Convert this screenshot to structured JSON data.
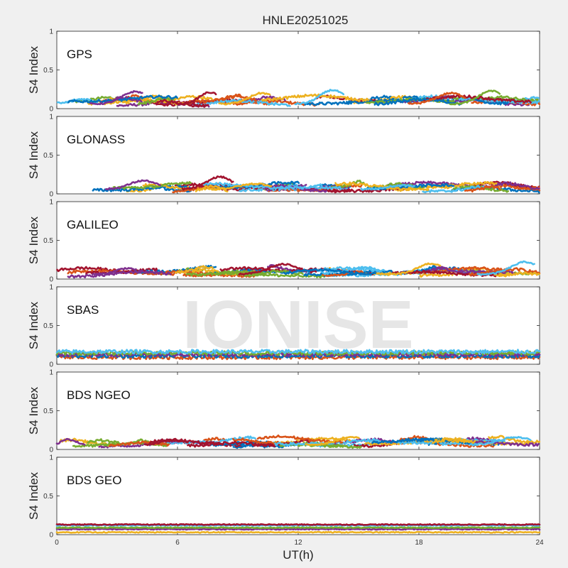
{
  "chart_data": {
    "type": "line",
    "title": "HNLE20251025",
    "xlabel": "UT(h)",
    "ylabel": "S4 Index",
    "xlim": [
      0,
      24
    ],
    "ylim": [
      0,
      1
    ],
    "xticks": [
      "0",
      "6",
      "12",
      "18",
      "24"
    ],
    "yticks": [
      "0",
      "0.5",
      "1"
    ],
    "watermark": "IONISE",
    "series_colors": [
      "#0072BD",
      "#D95319",
      "#EDB120",
      "#7E2F8E",
      "#77AC30",
      "#4DBEEE",
      "#A2142F"
    ],
    "panels": [
      {
        "name": "GPS",
        "s4_baseline": 0.08,
        "s4_max": 0.24,
        "peaks": [
          {
            "x": 3.9,
            "y": 0.22
          },
          {
            "x": 7.6,
            "y": 0.21
          },
          {
            "x": 10.2,
            "y": 0.2
          },
          {
            "x": 13.7,
            "y": 0.24
          },
          {
            "x": 19.6,
            "y": 0.2
          },
          {
            "x": 21.6,
            "y": 0.23
          }
        ]
      },
      {
        "name": "GLONASS",
        "s4_baseline": 0.06,
        "s4_max": 0.22,
        "peaks": [
          {
            "x": 4.3,
            "y": 0.17
          },
          {
            "x": 8.1,
            "y": 0.22
          },
          {
            "x": 9.9,
            "y": 0.13
          },
          {
            "x": 17.2,
            "y": 0.11
          }
        ]
      },
      {
        "name": "GALILEO",
        "s4_baseline": 0.07,
        "s4_max": 0.22,
        "peaks": [
          {
            "x": 3.5,
            "y": 0.14
          },
          {
            "x": 11.3,
            "y": 0.19
          },
          {
            "x": 18.6,
            "y": 0.2
          },
          {
            "x": 23.3,
            "y": 0.22
          }
        ]
      },
      {
        "name": "SBAS",
        "s4_baseline": 0.12,
        "s4_max": 0.18,
        "peaks": []
      },
      {
        "name": "BDS NGEO",
        "s4_baseline": 0.07,
        "s4_max": 0.17,
        "peaks": [
          {
            "x": 0.6,
            "y": 0.13
          },
          {
            "x": 5.8,
            "y": 0.13
          },
          {
            "x": 14.6,
            "y": 0.16
          },
          {
            "x": 22.8,
            "y": 0.16
          }
        ]
      },
      {
        "name": "BDS GEO",
        "s4_baseline": 0.1,
        "s4_max": 0.16,
        "levels": [
          0.03,
          0.07,
          0.09,
          0.12,
          0.13
        ]
      }
    ]
  }
}
